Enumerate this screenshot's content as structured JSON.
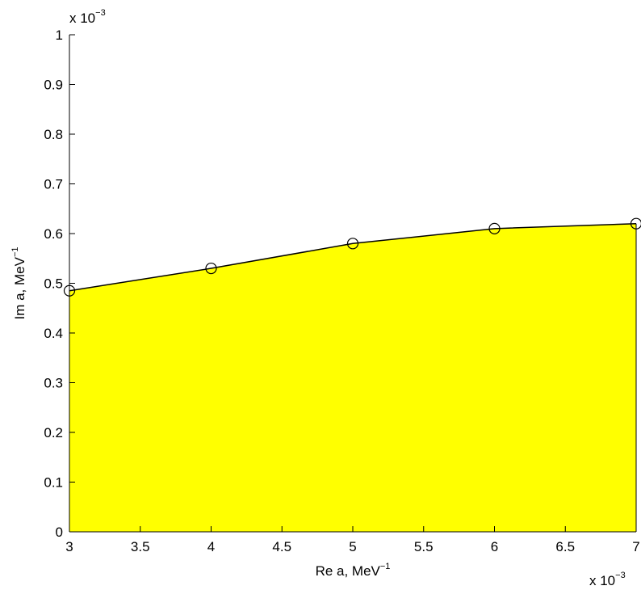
{
  "chart_data": {
    "type": "area",
    "title": "",
    "xlabel": {
      "base": "Re a, MeV",
      "sup": "−1"
    },
    "ylabel": {
      "base": "Im a, MeV",
      "sup": "−1"
    },
    "x_multiplier": {
      "base": "x 10",
      "sup": "−3"
    },
    "y_multiplier": {
      "base": "x 10",
      "sup": "−3"
    },
    "xlim": [
      3,
      7
    ],
    "ylim": [
      0,
      1
    ],
    "x_ticks": [
      "3",
      "3.5",
      "4",
      "4.5",
      "5",
      "5.5",
      "6",
      "6.5",
      "7"
    ],
    "y_ticks": [
      "0",
      "0.1",
      "0.2",
      "0.3",
      "0.4",
      "0.5",
      "0.6",
      "0.7",
      "0.8",
      "0.9",
      "1"
    ],
    "grid": false,
    "series": [
      {
        "x": [
          3,
          4,
          5,
          6,
          7
        ],
        "y": [
          0.485,
          0.53,
          0.58,
          0.61,
          0.62
        ],
        "marker": "circle",
        "line_color": "#000000",
        "fill_color": "#ffff00"
      }
    ]
  }
}
